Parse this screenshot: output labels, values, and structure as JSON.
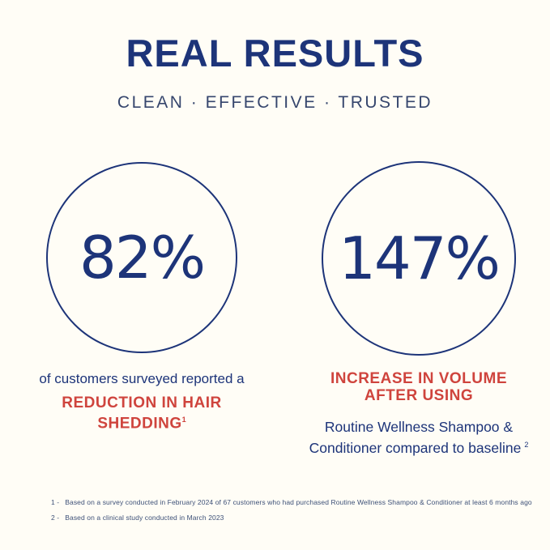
{
  "page": {
    "title": "REAL RESULTS",
    "subtitle": "CLEAN · EFFECTIVE · TRUSTED"
  },
  "stats": {
    "left": {
      "value": "82%",
      "lead_text": "of customers surveyed reported a",
      "highlight_line1": "REDUCTION IN HAIR",
      "highlight_line2": "SHEDDING",
      "footnote_ref": "1"
    },
    "right": {
      "value": "147%",
      "highlight_line1": "INCREASE IN VOLUME",
      "highlight_line2": "AFTER USING",
      "detail_line1": "Routine Wellness Shampoo &",
      "detail_line2": "Conditioner compared to baseline",
      "footnote_ref": "2"
    }
  },
  "footnotes": [
    {
      "marker": "1 -",
      "text": "Based on a survey conducted in February 2024 of 67 customers who had purchased Routine Wellness Shampoo & Conditioner at least 6 months ago"
    },
    {
      "marker": "2 -",
      "text": "Based on a clinical study conducted in March 2023"
    }
  ],
  "colors": {
    "navy": "#1d3479",
    "navy_soft": "#36466d",
    "red": "#cf443d",
    "footnote_text": "#3e5178",
    "background": "#fffdf6"
  }
}
